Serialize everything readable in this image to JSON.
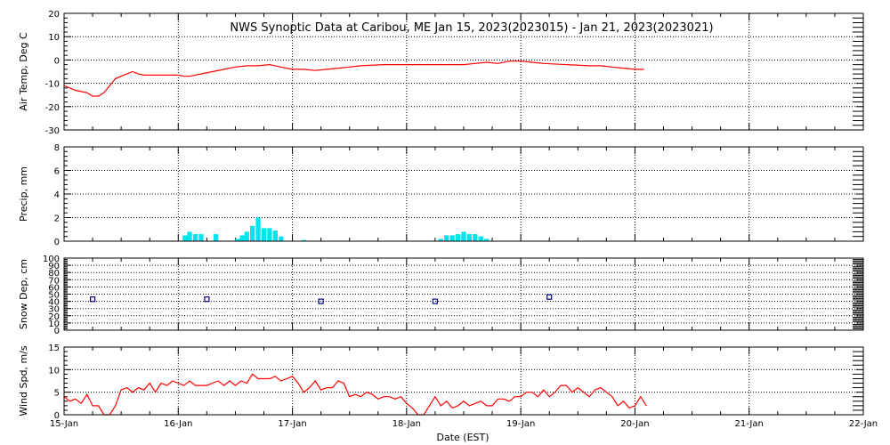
{
  "title": "NWS Synoptic Data at Caribou, ME   Jan 15, 2023(2023015) - Jan 21, 2023(2023021)",
  "colors": {
    "air_temp": "#ff0000",
    "precip": "#00e5ee",
    "snow_depth": "#00008b",
    "wind": "#ff0000",
    "axis": "#000000",
    "grid": "#000000"
  },
  "x_axis": {
    "label": "Date (EST)",
    "range": [
      0,
      7
    ],
    "tick_values": [
      0,
      1,
      2,
      3,
      4,
      5,
      6,
      7
    ],
    "tick_labels": [
      "15-Jan",
      "16-Jan",
      "17-Jan",
      "18-Jan",
      "19-Jan",
      "20-Jan",
      "21-Jan",
      "22-Jan"
    ]
  },
  "chart_data": [
    {
      "type": "line",
      "id": "air_temp",
      "ylabel": "Air Temp, Deg C",
      "ylim": [
        -30,
        20
      ],
      "yticks": [
        -30,
        -20,
        -10,
        0,
        10,
        20
      ],
      "grid": true,
      "x_units": "days since 15-Jan 00:00 EST",
      "x": [
        0.0,
        0.1,
        0.2,
        0.25,
        0.3,
        0.35,
        0.4,
        0.45,
        0.5,
        0.55,
        0.6,
        0.65,
        0.7,
        0.8,
        1.0,
        1.05,
        1.1,
        1.2,
        1.3,
        1.4,
        1.5,
        1.6,
        1.7,
        1.8,
        1.9,
        2.0,
        2.1,
        2.2,
        2.3,
        2.4,
        2.5,
        2.6,
        2.8,
        3.0,
        3.2,
        3.4,
        3.5,
        3.6,
        3.7,
        3.8,
        3.9,
        4.0,
        4.1,
        4.2,
        4.4,
        4.6,
        4.7,
        4.8,
        4.9,
        5.0,
        5.08
      ],
      "y": [
        -11,
        -13,
        -14,
        -15.5,
        -15.5,
        -14,
        -11,
        -8,
        -7,
        -6,
        -5,
        -6,
        -6.5,
        -6.5,
        -6.5,
        -7,
        -7,
        -6,
        -5,
        -4,
        -3,
        -2.5,
        -2.5,
        -2,
        -3,
        -4,
        -4,
        -4.5,
        -4,
        -3.5,
        -3,
        -2.5,
        -2,
        -2,
        -2,
        -2,
        -2,
        -1.5,
        -1,
        -1.5,
        -0.5,
        -0.5,
        -1,
        -1.5,
        -2,
        -2.5,
        -2.5,
        -3,
        -3.5,
        -4,
        -4
      ]
    },
    {
      "type": "bar",
      "id": "precip",
      "ylabel": "Precip, mm",
      "ylim": [
        0,
        8
      ],
      "yticks": [
        0,
        2,
        4,
        6,
        8
      ],
      "grid": true,
      "x_units": "days since 15-Jan 00:00 EST",
      "bar_width_days": 0.0417,
      "x": [
        1.06,
        1.1,
        1.15,
        1.2,
        1.33,
        1.52,
        1.56,
        1.6,
        1.65,
        1.7,
        1.75,
        1.8,
        1.85,
        1.9,
        2.1,
        3.3,
        3.35,
        3.4,
        3.45,
        3.5,
        3.55,
        3.6,
        3.65,
        3.7
      ],
      "values": [
        0.5,
        0.8,
        0.6,
        0.6,
        0.6,
        0.2,
        0.5,
        0.8,
        1.3,
        2.0,
        1.1,
        1.1,
        0.9,
        0.4,
        0.1,
        0.2,
        0.5,
        0.5,
        0.6,
        0.8,
        0.6,
        0.6,
        0.4,
        0.2
      ]
    },
    {
      "type": "scatter",
      "id": "snow_depth",
      "ylabel": "Snow Dep, cm",
      "ylim": [
        0,
        100
      ],
      "yticks": [
        0,
        10,
        20,
        30,
        40,
        50,
        60,
        70,
        80,
        90,
        100
      ],
      "grid": true,
      "x_units": "days since 15-Jan 00:00 EST",
      "x": [
        0.25,
        1.25,
        2.25,
        3.25,
        4.25
      ],
      "values": [
        43,
        43,
        40,
        40,
        46
      ]
    },
    {
      "type": "line",
      "id": "wind",
      "ylabel": "Wind Spd, m/s",
      "ylim": [
        0,
        15
      ],
      "yticks": [
        0,
        5,
        10,
        15
      ],
      "grid": true,
      "x_units": "days since 15-Jan 00:00 EST",
      "x": [
        0.0,
        0.05,
        0.1,
        0.15,
        0.2,
        0.25,
        0.3,
        0.35,
        0.4,
        0.45,
        0.5,
        0.55,
        0.6,
        0.65,
        0.7,
        0.75,
        0.8,
        0.85,
        0.9,
        0.95,
        1.0,
        1.05,
        1.1,
        1.15,
        1.2,
        1.25,
        1.3,
        1.35,
        1.4,
        1.45,
        1.5,
        1.55,
        1.6,
        1.65,
        1.7,
        1.75,
        1.8,
        1.85,
        1.9,
        1.95,
        2.0,
        2.05,
        2.1,
        2.15,
        2.2,
        2.25,
        2.3,
        2.35,
        2.4,
        2.45,
        2.5,
        2.55,
        2.6,
        2.65,
        2.7,
        2.75,
        2.8,
        2.85,
        2.9,
        2.95,
        3.0,
        3.05,
        3.1,
        3.15,
        3.2,
        3.25,
        3.3,
        3.35,
        3.4,
        3.45,
        3.5,
        3.55,
        3.6,
        3.65,
        3.7,
        3.75,
        3.8,
        3.85,
        3.9,
        3.95,
        4.0,
        4.05,
        4.1,
        4.15,
        4.2,
        4.25,
        4.3,
        4.35,
        4.4,
        4.45,
        4.5,
        4.55,
        4.6,
        4.65,
        4.7,
        4.75,
        4.8,
        4.85,
        4.9,
        4.95,
        5.0,
        5.05,
        5.1
      ],
      "y": [
        4,
        3,
        3.5,
        2.5,
        4.5,
        2,
        2,
        0,
        0,
        2,
        5.5,
        6,
        5,
        6,
        5.5,
        7,
        5,
        7,
        6.5,
        7.5,
        7,
        6.5,
        7.5,
        6.5,
        6.5,
        6.5,
        7,
        7.5,
        6.5,
        7.5,
        6.5,
        7.5,
        7,
        9,
        8,
        8,
        8,
        8.5,
        7.5,
        8,
        8.5,
        7,
        5,
        6,
        7.5,
        5.5,
        6,
        6,
        7.5,
        7,
        4,
        4.5,
        4,
        5,
        4.5,
        3.5,
        4,
        4,
        3.5,
        4,
        2.5,
        1.5,
        0,
        0,
        2,
        4,
        2,
        3,
        1.5,
        2,
        3,
        2,
        2.5,
        3,
        2,
        2,
        3.5,
        3.5,
        3,
        4,
        4,
        5,
        5,
        4,
        5.5,
        4,
        5,
        6.5,
        6.5,
        5,
        6,
        5,
        4,
        5.5,
        6,
        5,
        4,
        2,
        3,
        1.5,
        2,
        4,
        2
      ]
    }
  ]
}
